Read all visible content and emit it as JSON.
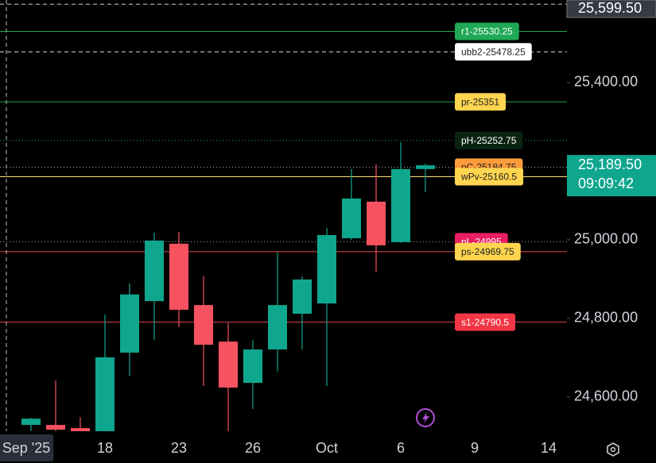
{
  "chart_data": {
    "type": "candlestick",
    "categories": [
      "Sep '25",
      null,
      null,
      "18",
      null,
      null,
      "23",
      null,
      null,
      "26",
      null,
      null,
      "Oct",
      null,
      null,
      "6",
      null,
      null,
      "9",
      null,
      null,
      "14"
    ],
    "open": [
      24529,
      24529,
      24521,
      24500,
      24713,
      24844,
      24990,
      24834,
      24741,
      24636,
      24721,
      24812,
      24838,
      25004,
      25097,
      24994,
      25180,
      null,
      null,
      null,
      null,
      null
    ],
    "high": [
      24547,
      24642,
      24549,
      24810,
      24889,
      25018,
      25020,
      24907,
      24788,
      24745,
      24968,
      24907,
      25030,
      25180,
      25192,
      25248,
      25194,
      null,
      null,
      null,
      null,
      null
    ],
    "low": [
      24500,
      24500,
      24500,
      24490,
      24653,
      24745,
      24778,
      24628,
      24513,
      24570,
      24665,
      24721,
      24628,
      25000,
      24919,
      24992,
      25121,
      null,
      null,
      null,
      null,
      null
    ],
    "close": [
      24545,
      24517,
      24513,
      24701,
      24861,
      24998,
      24822,
      24733,
      24624,
      24721,
      24834,
      24899,
      25012,
      25105,
      24986,
      25180,
      25189.5,
      null,
      null,
      null,
      null,
      null
    ],
    "up_color": "#0fa68e",
    "down_color": "#f7525f",
    "ylim": [
      24513,
      25610
    ],
    "yticks": [
      {
        "value": 24600,
        "label": "24,600.00"
      },
      {
        "value": 24800,
        "label": "24,800.00"
      },
      {
        "value": 25000,
        "label": "25,000.00"
      },
      {
        "value": 25400,
        "label": "25,400.00"
      }
    ],
    "levels": [
      {
        "label": "r1-25530.25",
        "value": 25530.25,
        "color": "#1fa855",
        "text_color": "#ffffff",
        "line_color": "#1fa855",
        "style": "solid"
      },
      {
        "label": "ubb2-25478.25",
        "value": 25478.25,
        "color": "#ffffff",
        "text_color": "#222222",
        "line_color": "#dddddd",
        "style": "dashed"
      },
      {
        "label": "pr-25351",
        "value": 25351,
        "color": "#ffd54f",
        "text_color": "#222222",
        "line_color": "#2e9e4f",
        "style": "solid"
      },
      {
        "label": "pH-25252.75",
        "value": 25252.75,
        "color": "#0b2412",
        "text_color": "#ffffff",
        "line_color": "#2e9e4f",
        "style": "dotted"
      },
      {
        "label": "pC-25184.75",
        "value": 25184.75,
        "color": "#ff9b3a",
        "text_color": "#222222",
        "line_color": "#aaaaaa",
        "style": "dotted"
      },
      {
        "label": "wPv-25160.5",
        "value": 25160.5,
        "color": "#ffd54f",
        "text_color": "#222222",
        "line_color": "#ffe082",
        "style": "solid"
      },
      {
        "label": "pL-24995",
        "value": 24995,
        "color": "#e91e63",
        "text_color": "#ffffff",
        "line_color": "#aaaaaa",
        "style": "dotted"
      },
      {
        "label": "ps-24969.75",
        "value": 24969.75,
        "color": "#ffd54f",
        "text_color": "#222222",
        "line_color": "#e0454f",
        "style": "solid"
      },
      {
        "label": "s1-24790.5",
        "value": 24790.5,
        "color": "#f23645",
        "text_color": "#ffffff",
        "line_color": "#e0454f",
        "style": "solid"
      }
    ],
    "crosshair": {
      "value": 25599.5,
      "label": "25,599.50"
    },
    "last_price": {
      "value": 25189.5,
      "label": "25,189.50",
      "countdown": "09:09:42"
    }
  }
}
